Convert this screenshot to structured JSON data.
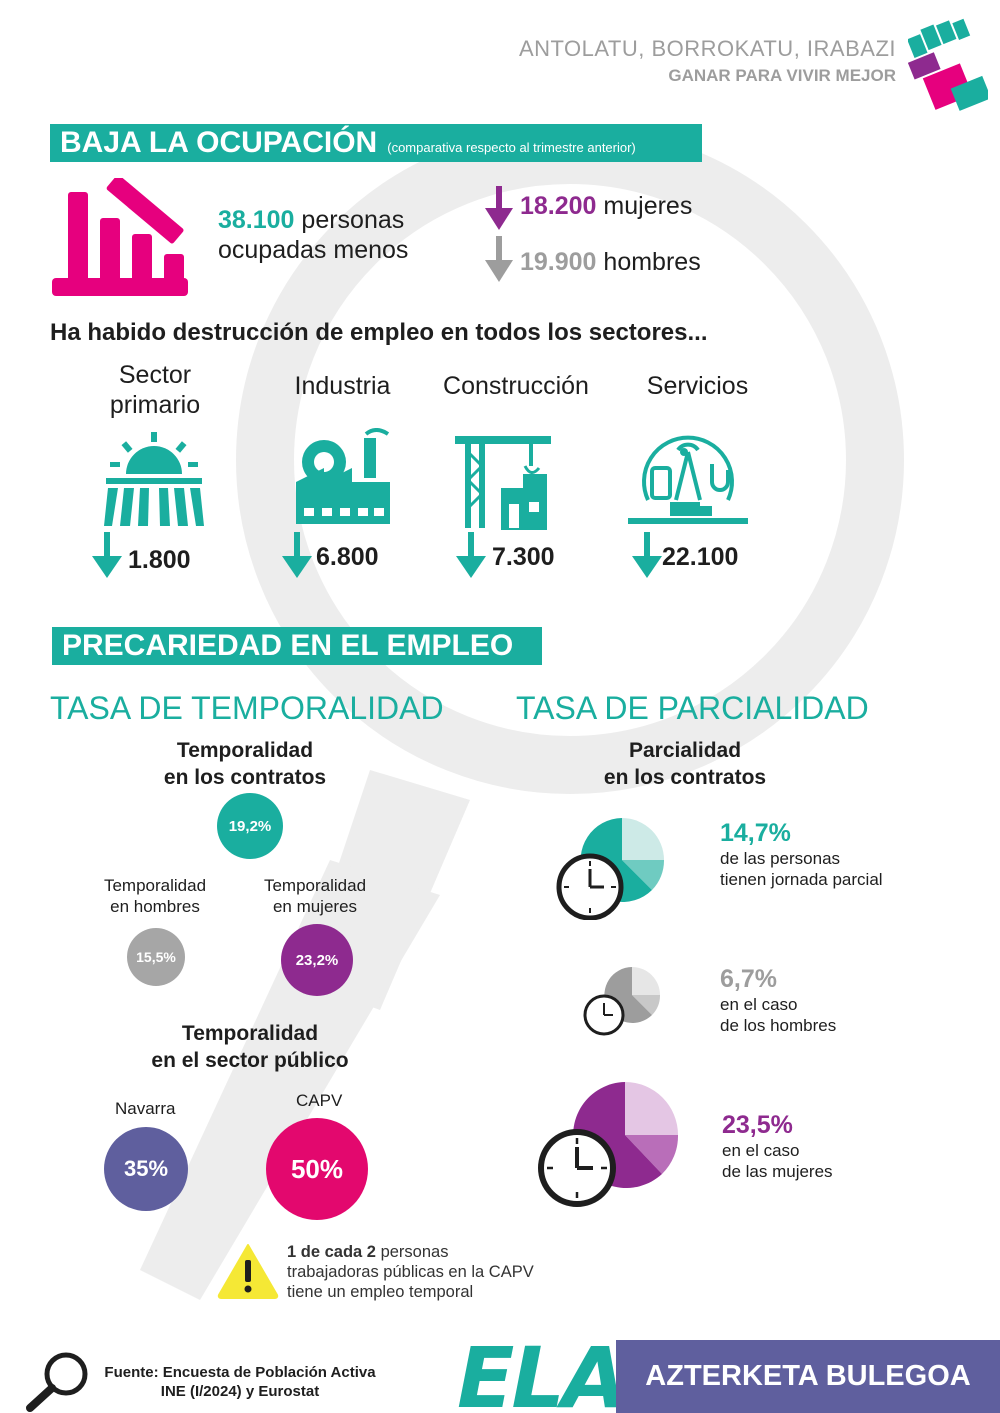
{
  "header": {
    "slogan": "ANTOLATU, BORROKATU, IRABAZI",
    "subtitle": "GANAR PARA VIVIR MEJOR",
    "logo_icon": "fist-icon"
  },
  "section1": {
    "title": "BAJA LA OCUPACIÓN",
    "note": "(comparativa respecto al trimestre anterior)",
    "total_value": "38.100",
    "total_text1": "personas",
    "total_text2": "ocupadas menos",
    "women_value": "18.200",
    "women_label": "mujeres",
    "men_value": "19.900",
    "men_label": "hombres",
    "sectors_heading": "Ha habido destrucción de empleo en todos los sectores...",
    "sectors": [
      {
        "name": "Sector\nprimario",
        "value": "1.800",
        "icon": "sun-field-icon"
      },
      {
        "name": "Industria",
        "value": "6.800",
        "icon": "factory-icon"
      },
      {
        "name": "Construcción",
        "value": "7.300",
        "icon": "crane-icon"
      },
      {
        "name": "Servicios",
        "value": "22.100",
        "icon": "services-gear-icon"
      }
    ]
  },
  "section2": {
    "title": "PRECARIEDAD EN EL EMPLEO",
    "temp": {
      "heading": "TASA DE TEMPORALIDAD",
      "contracts_label_1": "Temporalidad",
      "contracts_label_2": "en los contratos",
      "contracts_value": "19,2%",
      "men_label_1": "Temporalidad",
      "men_label_2": "en hombres",
      "men_value": "15,5%",
      "women_label_1": "Temporalidad",
      "women_label_2": "en mujeres",
      "women_value": "23,2%",
      "public_label_1": "Temporalidad",
      "public_label_2": "en el sector público",
      "navarra_label": "Navarra",
      "navarra_value": "35%",
      "capv_label": "CAPV",
      "capv_value": "50%",
      "warning_bold": "1 de cada 2",
      "warning_text1": " personas",
      "warning_text2": "trabajadoras públicas en la CAPV",
      "warning_text3": "tiene un empleo temporal"
    },
    "part": {
      "heading": "TASA DE PARCIALIDAD",
      "label_1": "Parcialidad",
      "label_2": "en los contratos",
      "total_value": "14,7%",
      "total_text1": "de las personas",
      "total_text2": "tienen jornada parcial",
      "men_value": "6,7%",
      "men_text1": "en el caso",
      "men_text2": "de los hombres",
      "women_value": "23,5%",
      "women_text1": "en el caso",
      "women_text2": "de las mujeres"
    }
  },
  "footer": {
    "source_1": "Fuente: Encuesta de Población Activa",
    "source_2": "INE (I/2024) y Eurostat",
    "brand": "ELA",
    "office": "AZTERKETA BULEGOA"
  },
  "colors": {
    "teal": "#1aae9f",
    "magenta": "#e6007e",
    "purple": "#8e2a8f",
    "grey": "#9d9d9d",
    "navy": "#5f5f9e",
    "pink": "#e3086e",
    "footer_band": "#5f5f9e"
  }
}
